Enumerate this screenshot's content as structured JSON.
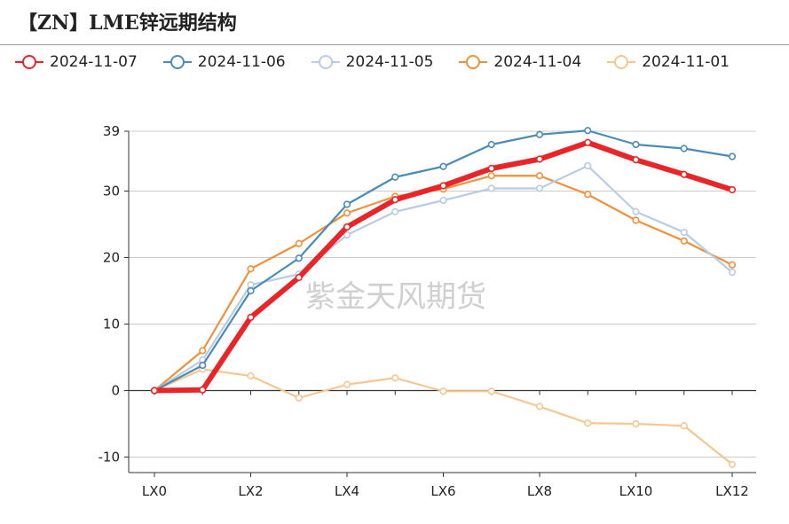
{
  "title": "【ZN】LME锌远期结构",
  "watermark": "紫金天风期货",
  "chart_data": {
    "type": "line",
    "title": "【ZN】LME锌远期结构",
    "categories": [
      "LX0",
      "LX1",
      "LX2",
      "LX3",
      "LX4",
      "LX5",
      "LX6",
      "LX7",
      "LX8",
      "LX9",
      "LX10",
      "LX11",
      "LX12"
    ],
    "x_tick_labels": [
      "LX0",
      "LX2",
      "LX4",
      "LX6",
      "LX8",
      "LX10",
      "LX12"
    ],
    "y_ticks": [
      -10,
      0,
      10,
      20,
      30,
      39
    ],
    "ylim": [
      -12,
      39
    ],
    "grid": true,
    "legend": "top",
    "series": [
      {
        "name": "2024-11-07",
        "color": "#e8262a",
        "width": 6,
        "values": [
          0,
          0.1,
          11,
          17,
          24.6,
          28.7,
          30.8,
          33.4,
          34.8,
          37.3,
          34.7,
          32.5,
          30.2
        ]
      },
      {
        "name": "2024-11-06",
        "color": "#4a8bb8",
        "width": 2.2,
        "values": [
          0,
          3.8,
          15,
          19.9,
          28,
          32.1,
          33.7,
          37,
          38.5,
          39.1,
          37,
          36.4,
          35.2
        ]
      },
      {
        "name": "2024-11-05",
        "color": "#b8cce6",
        "width": 2.2,
        "values": [
          0,
          4.6,
          15.9,
          17.5,
          23.4,
          26.9,
          28.6,
          30.4,
          30.4,
          33.8,
          26.9,
          23.8,
          17.8
        ]
      },
      {
        "name": "2024-11-04",
        "color": "#f0913a",
        "width": 2.2,
        "values": [
          0,
          6,
          18.3,
          22.1,
          26.7,
          29.2,
          30.3,
          32.3,
          32.3,
          29.5,
          25.6,
          22.5,
          18.9
        ]
      },
      {
        "name": "2024-11-01",
        "color": "#f6c690",
        "width": 2.2,
        "values": [
          0,
          3.2,
          2.2,
          -1.1,
          0.9,
          1.9,
          -0.1,
          -0.1,
          -2.4,
          -4.9,
          -5,
          -5.3,
          -11.1
        ]
      }
    ]
  }
}
